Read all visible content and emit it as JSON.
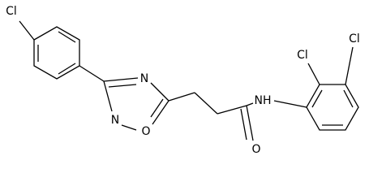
{
  "atoms": [
    {
      "label": "Cl"
    },
    {
      "label": "N"
    },
    {
      "label": "N"
    },
    {
      "label": "O"
    },
    {
      "label": "O"
    },
    {
      "label": "NH"
    },
    {
      "label": "Cl"
    },
    {
      "label": "Cl"
    }
  ]
}
